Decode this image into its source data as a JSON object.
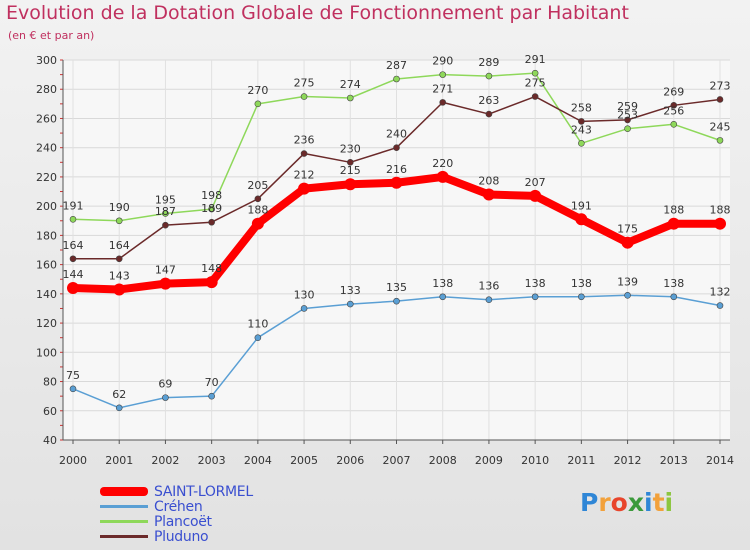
{
  "title": "Evolution de la Dotation Globale de Fonctionnement par Habitant",
  "subtitle": "(en € et par an)",
  "logo": {
    "text": "Proxiti",
    "letters": [
      "P",
      "r",
      "o",
      "x",
      "i",
      "t",
      "i"
    ],
    "colors": [
      "#2f86d6",
      "#f2a13b",
      "#e8452c",
      "#3b9a3b",
      "#2f86d6",
      "#f2a13b",
      "#8cc63f"
    ]
  },
  "chart_data": {
    "type": "line",
    "x": [
      "2000",
      "2001",
      "2002",
      "2003",
      "2004",
      "2005",
      "2006",
      "2007",
      "2008",
      "2009",
      "2010",
      "2011",
      "2012",
      "2013",
      "2014"
    ],
    "ylim": [
      40,
      300
    ],
    "yticks": [
      "40",
      "60",
      "80",
      "100",
      "120",
      "140",
      "160",
      "180",
      "200",
      "220",
      "240",
      "260",
      "280",
      "300"
    ],
    "grid": true,
    "legend_position": "bottom-left",
    "series": [
      {
        "name": "Créhen",
        "color": "#5a9fd4",
        "values": [
          75,
          62,
          69,
          70,
          110,
          130,
          133,
          135,
          138,
          136,
          138,
          138,
          139,
          138,
          132
        ]
      },
      {
        "name": "Plancoët",
        "color": "#8ed85a",
        "values": [
          191,
          190,
          195,
          198,
          270,
          275,
          274,
          287,
          290,
          289,
          291,
          243,
          253,
          256,
          245
        ]
      },
      {
        "name": "Pluduno",
        "color": "#6b2a2a",
        "values": [
          164,
          164,
          187,
          189,
          205,
          236,
          230,
          240,
          271,
          263,
          275,
          258,
          259,
          269,
          273
        ]
      },
      {
        "name": "SAINT-LORMEL",
        "color": "#ff0000",
        "values": [
          144,
          143,
          147,
          148,
          188,
          212,
          215,
          216,
          220,
          208,
          207,
          191,
          175,
          188,
          188
        ]
      }
    ],
    "value_labels": [
      [
        "75",
        "62",
        "69",
        "70",
        "110",
        "130",
        "133",
        "135",
        "138",
        "136",
        "138",
        "138",
        "139",
        "138",
        "132"
      ],
      [
        "191",
        "190",
        "195",
        "198",
        "270",
        "275",
        "274",
        "287",
        "290",
        "289",
        "291",
        "243",
        "253",
        "256",
        "245"
      ],
      [
        "164",
        "164",
        "187",
        "189",
        "205",
        "236",
        "230",
        "240",
        "271",
        "263",
        "275",
        "258",
        "259",
        "269",
        "273"
      ],
      [
        "144",
        "143",
        "147",
        "148",
        "188",
        "212",
        "215",
        "216",
        "220",
        "208",
        "207",
        "191",
        "175",
        "188",
        "188"
      ]
    ],
    "legend": [
      {
        "name": "SAINT-LORMEL",
        "color": "#ff0000",
        "text_color": "#3a4fd0"
      },
      {
        "name": "Créhen",
        "color": "#5a9fd4",
        "text_color": "#3a4fd0"
      },
      {
        "name": "Plancoët",
        "color": "#8ed85a",
        "text_color": "#3a4fd0"
      },
      {
        "name": "Pluduno",
        "color": "#6b2a2a",
        "text_color": "#3a4fd0"
      }
    ]
  }
}
